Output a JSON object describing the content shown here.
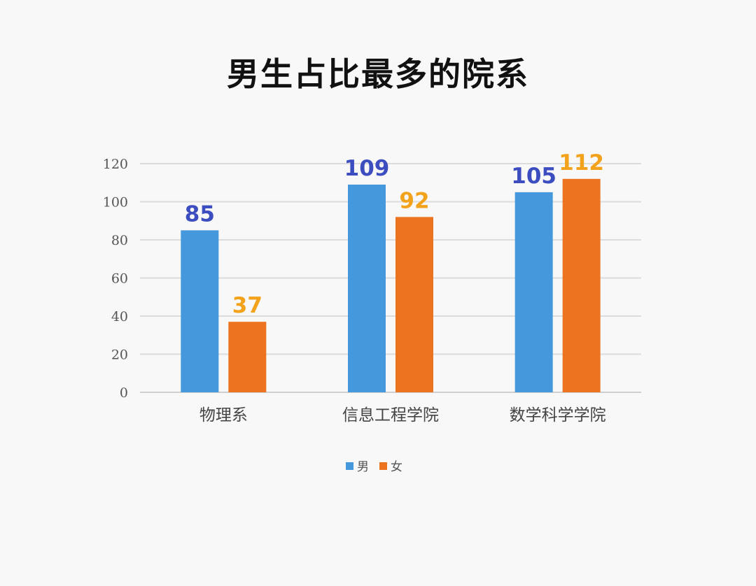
{
  "chart_data": {
    "type": "bar",
    "title": "男生占比最多的院系",
    "categories": [
      "物理系",
      "信息工程学院",
      "数学科学学院"
    ],
    "series": [
      {
        "name": "男",
        "values": [
          85,
          109,
          105
        ],
        "color": "#4598dc",
        "label_color": "#3c4dbf"
      },
      {
        "name": "女",
        "values": [
          37,
          92,
          112
        ],
        "color": "#ec731f",
        "label_color": "#f3a21b"
      }
    ],
    "yticks": [
      0,
      20,
      40,
      60,
      80,
      100,
      120
    ],
    "ylim": [
      0,
      120
    ],
    "grid": true,
    "legend_position": "bottom",
    "xlabel": "",
    "ylabel": ""
  }
}
